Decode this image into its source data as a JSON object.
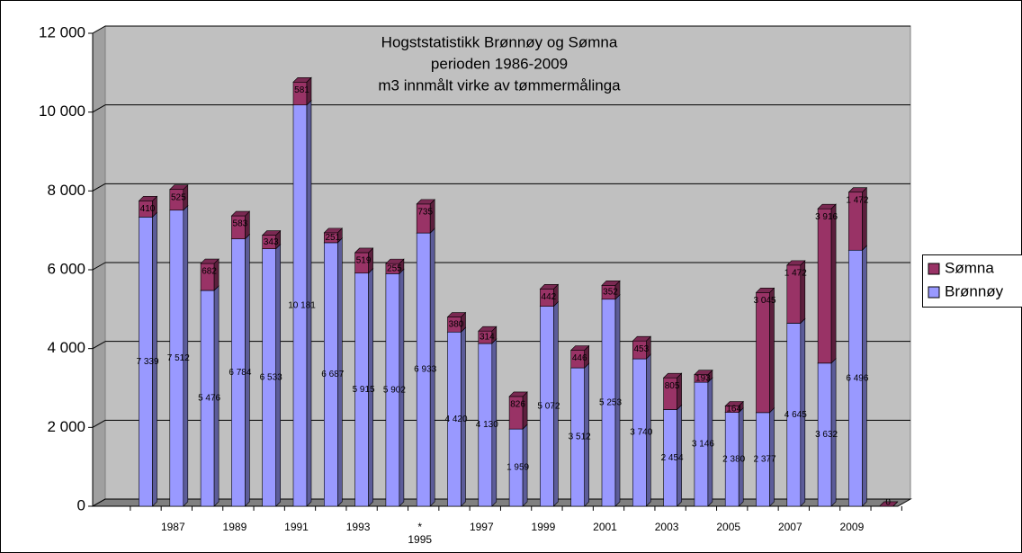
{
  "chart_data": {
    "type": "bar3d_stacked",
    "title": [
      "Hogststatistikk Brønnøy og Sømna",
      "perioden 1986-2009",
      "m3 innmålt virke av tømmermålinga"
    ],
    "categories": [
      null,
      "1987",
      null,
      "1989",
      null,
      "1991",
      null,
      "1993",
      null,
      "*\n1995",
      null,
      "1997",
      null,
      "1999",
      null,
      "2001",
      null,
      "2003",
      null,
      "2005",
      null,
      "2007",
      null,
      "2009",
      null
    ],
    "series": [
      {
        "name": "Brønnøy",
        "color": "#9999ff",
        "values": [
          7339,
          7512,
          5476,
          6784,
          6533,
          10181,
          6687,
          5915,
          5902,
          6933,
          4420,
          4130,
          1959,
          5072,
          3512,
          5253,
          3740,
          2454,
          3146,
          2380,
          2377,
          4645,
          3632,
          6496,
          0
        ],
        "value_labels": [
          "7 339",
          "7 512",
          "5 476",
          "6 784",
          "6 533",
          "10 181",
          "6 687",
          "5 915",
          "5 902",
          "6 933",
          "4 420",
          "4 130",
          "1 959",
          "5 072",
          "3 512",
          "5 253",
          "3 740",
          "2 454",
          "3 146",
          "2 380",
          "2 377",
          "4 645",
          "3 632",
          "6 496",
          "0"
        ]
      },
      {
        "name": "Sømna",
        "color": "#993366",
        "values": [
          410,
          525,
          682,
          583,
          343,
          581,
          251,
          519,
          255,
          735,
          380,
          314,
          826,
          442,
          446,
          352,
          453,
          805,
          193,
          164,
          3045,
          1472,
          3916,
          1472,
          0
        ],
        "value_labels": [
          "410",
          "525",
          "682",
          "583",
          "343",
          "581",
          "251",
          "519",
          "255",
          "735",
          "380",
          "314",
          "826",
          "442",
          "446",
          "352",
          "453",
          "805",
          "193",
          "164",
          "3 045",
          "1 472",
          "3 916",
          "1 472",
          "0"
        ]
      }
    ],
    "ylim": [
      0,
      12000
    ],
    "yticks": [
      0,
      {
        "value": 2000,
        "label": "2 000"
      },
      {
        "value": 4000,
        "label": "4 000"
      },
      {
        "value": 6000,
        "label": "6 000"
      },
      {
        "value": 8000,
        "label": "8 000"
      },
      {
        "value": 10000,
        "label": "10 000"
      },
      {
        "value": 12000,
        "label": "12 000"
      }
    ],
    "grid": true,
    "legend": "right"
  }
}
